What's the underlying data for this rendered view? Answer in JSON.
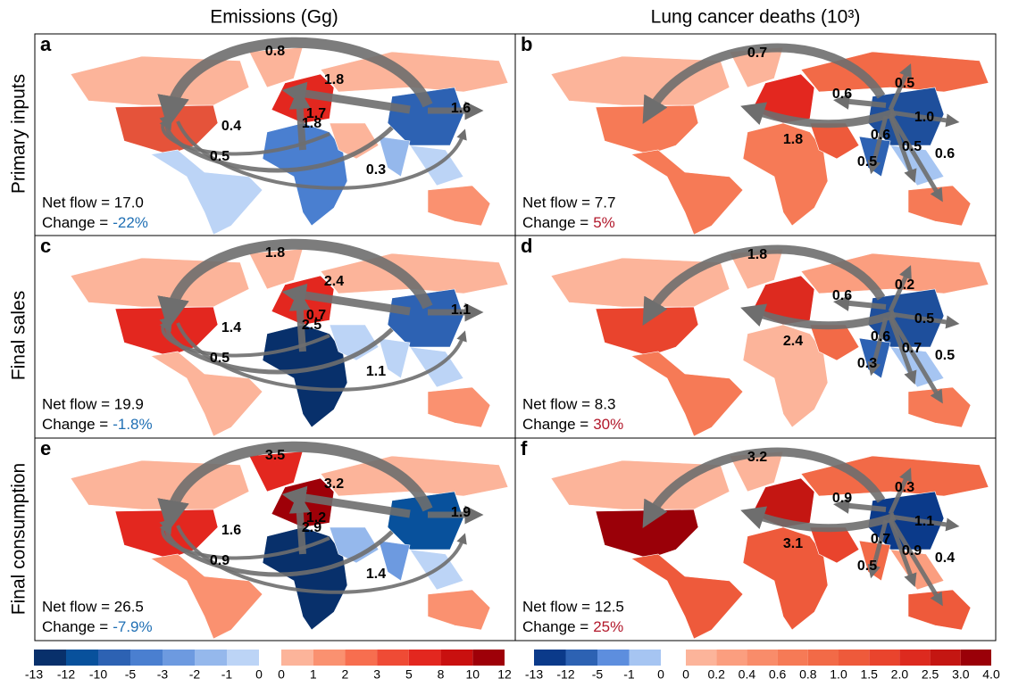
{
  "column_titles": [
    "Emissions (Gg)",
    "Lung cancer deaths (10³)"
  ],
  "row_labels": [
    "Primary inputs",
    "Final sales",
    "Final consumption"
  ],
  "panels": [
    {
      "letter": "a",
      "net_flow": "Net flow = 17.0",
      "change_label": "Change =",
      "change": "-22%",
      "change_color": "#1f6fb4",
      "flows": [
        "0.8",
        "1.8",
        "1.7",
        "1.8",
        "0.4",
        "0.5",
        "0.3",
        "1.6"
      ],
      "region_colors": [
        "#fcb49a",
        "#e5533a",
        "#bcd4f6",
        "#fcb49a",
        "#e3271f",
        "#4a7fd0",
        "#fcb49a",
        "#fcb49a",
        "#2d62b3",
        "#95b8ec",
        "#bcd4f6",
        "#fa9170"
      ]
    },
    {
      "letter": "b",
      "net_flow": "Net flow = 7.7",
      "change_label": "Change =",
      "change": "5%",
      "change_color": "#b2182b",
      "flows": [
        "0.7",
        "0.5",
        "0.6",
        "1.0",
        "1.8",
        "0.6",
        "0.5",
        "0.5",
        "0.6"
      ],
      "region_colors": [
        "#fcb49a",
        "#f67a56",
        "#f67a56",
        "#fcb49a",
        "#e3271f",
        "#f67a56",
        "#ee5a3b",
        "#f26a47",
        "#1e4f9c",
        "#2d62b3",
        "#a6c5f2",
        "#f67a56"
      ]
    },
    {
      "letter": "c",
      "net_flow": "Net flow = 19.9",
      "change_label": "Change =",
      "change": "-1.8%",
      "change_color": "#1f6fb4",
      "flows": [
        "1.8",
        "2.4",
        "0.7",
        "2.5",
        "1.4",
        "0.5",
        "1.1",
        "1.1"
      ],
      "region_colors": [
        "#fcb49a",
        "#e3271f",
        "#fcb49a",
        "#fcb49a",
        "#e3271f",
        "#08306b",
        "#bcd4f6",
        "#fcb49a",
        "#2d62b3",
        "#bcd4f6",
        "#bcd4f6",
        "#fa9170"
      ]
    },
    {
      "letter": "d",
      "net_flow": "Net flow = 8.3",
      "change_label": "Change =",
      "change": "30%",
      "change_color": "#b2182b",
      "flows": [
        "1.8",
        "0.2",
        "0.6",
        "0.5",
        "2.4",
        "0.6",
        "0.7",
        "0.3",
        "0.5"
      ],
      "region_colors": [
        "#fcb49a",
        "#e9442d",
        "#f67a56",
        "#fcb49a",
        "#dd2a1f",
        "#fcb49a",
        "#f26a47",
        "#fb9e7f",
        "#1e4f9c",
        "#2d62b3",
        "#a6c5f2",
        "#f67a56"
      ]
    },
    {
      "letter": "e",
      "net_flow": "Net flow = 26.5",
      "change_label": "Change =",
      "change": "-7.9%",
      "change_color": "#1f6fb4",
      "flows": [
        "3.5",
        "3.2",
        "1.2",
        "2.9",
        "1.6",
        "0.9",
        "1.4",
        "1.9"
      ],
      "region_colors": [
        "#fcb49a",
        "#e3271f",
        "#fa9170",
        "#e3271f",
        "#9e0008",
        "#08306b",
        "#95b8ec",
        "#fcb49a",
        "#08519c",
        "#6d9ae0",
        "#bcd4f6",
        "#fa9170"
      ]
    },
    {
      "letter": "f",
      "net_flow": "Net flow = 12.5",
      "change_label": "Change =",
      "change": "25%",
      "change_color": "#b2182b",
      "flows": [
        "3.2",
        "0.3",
        "0.9",
        "1.1",
        "3.1",
        "0.7",
        "0.9",
        "0.5",
        "0.4"
      ],
      "region_colors": [
        "#fcb49a",
        "#9a0008",
        "#ee5a3b",
        "#fcb49a",
        "#c41612",
        "#ee5a3b",
        "#e9442d",
        "#f26a47",
        "#0b3a8a",
        "#f26a47",
        "#fb9e7f",
        "#ee5a3b"
      ]
    }
  ],
  "colorbars": [
    {
      "colors": [
        "#08306b",
        "#08519c",
        "#2d62b3",
        "#4a7fd0",
        "#6d9ae0",
        "#95b8ec",
        "#bcd4f6"
      ],
      "labels": [
        "-13",
        "-12",
        "-10",
        "-5",
        "-3",
        "-2",
        "-1",
        "0"
      ]
    },
    {
      "colors": [
        "#fcb49a",
        "#fa9170",
        "#f76e4f",
        "#ef4b35",
        "#e3271f",
        "#c9100f",
        "#9e0008"
      ],
      "labels": [
        "0",
        "1",
        "2",
        "3",
        "5",
        "8",
        "10",
        "12"
      ]
    },
    {
      "colors": [
        "#0b3a8a",
        "#2d62b3",
        "#5d8ede",
        "#a6c5f2"
      ],
      "labels": [
        "-13",
        "-12",
        "-5",
        "-1",
        "0"
      ]
    },
    {
      "colors": [
        "#fcb49a",
        "#fb9e7f",
        "#f98c6a",
        "#f67a56",
        "#f26a47",
        "#ee5a3b",
        "#e9442d",
        "#dd2a1f",
        "#c41612",
        "#9a0008"
      ],
      "labels": [
        "0",
        "0.2",
        "0.4",
        "0.6",
        "0.8",
        "1.0",
        "1.5",
        "2.0",
        "2.5",
        "3.0",
        "4.0"
      ]
    }
  ]
}
